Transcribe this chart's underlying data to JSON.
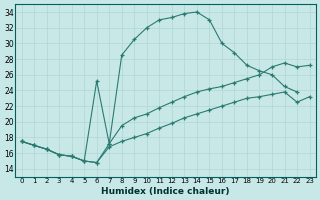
{
  "xlabel": "Humidex (Indice chaleur)",
  "bg_color": "#c8e8e8",
  "grid_color": "#b0d4d4",
  "line_color": "#2a7a70",
  "ylim": [
    13,
    35
  ],
  "xlim": [
    -0.5,
    23.5
  ],
  "yticks": [
    14,
    16,
    18,
    20,
    22,
    24,
    26,
    28,
    30,
    32,
    34
  ],
  "xticks": [
    0,
    1,
    2,
    3,
    4,
    5,
    6,
    7,
    8,
    9,
    10,
    11,
    12,
    13,
    14,
    15,
    16,
    17,
    18,
    19,
    20,
    21,
    22,
    23
  ],
  "line1_x": [
    0,
    1,
    2,
    3,
    4,
    5,
    6,
    7,
    8,
    9,
    10,
    11,
    12,
    13,
    14,
    15,
    16,
    17,
    18,
    19,
    20,
    21,
    22
  ],
  "line1_y": [
    17.5,
    17.0,
    16.5,
    15.8,
    15.6,
    15.0,
    14.8,
    17.2,
    28.5,
    30.5,
    32.0,
    33.0,
    33.3,
    33.8,
    34.0,
    33.0,
    30.0,
    28.8,
    27.2,
    26.5,
    26.0,
    24.5,
    23.8
  ],
  "line2_x": [
    0,
    1,
    2,
    3,
    4,
    5,
    6,
    7,
    8,
    9,
    10,
    11,
    12,
    13,
    14,
    15,
    16,
    17,
    18,
    19,
    20,
    21,
    22,
    23
  ],
  "line2_y": [
    17.5,
    17.0,
    16.5,
    15.8,
    15.6,
    15.0,
    25.2,
    17.2,
    19.5,
    20.5,
    21.0,
    21.8,
    22.5,
    23.2,
    23.8,
    24.2,
    24.5,
    25.0,
    25.5,
    26.0,
    27.0,
    27.5,
    27.0,
    27.2
  ],
  "line3_x": [
    0,
    1,
    2,
    3,
    4,
    5,
    6,
    7,
    8,
    9,
    10,
    11,
    12,
    13,
    14,
    15,
    16,
    17,
    18,
    19,
    20,
    21,
    22,
    23
  ],
  "line3_y": [
    17.5,
    17.0,
    16.5,
    15.8,
    15.6,
    15.0,
    14.8,
    16.8,
    17.5,
    18.0,
    18.5,
    19.2,
    19.8,
    20.5,
    21.0,
    21.5,
    22.0,
    22.5,
    23.0,
    23.2,
    23.5,
    23.8,
    22.5,
    23.2
  ]
}
